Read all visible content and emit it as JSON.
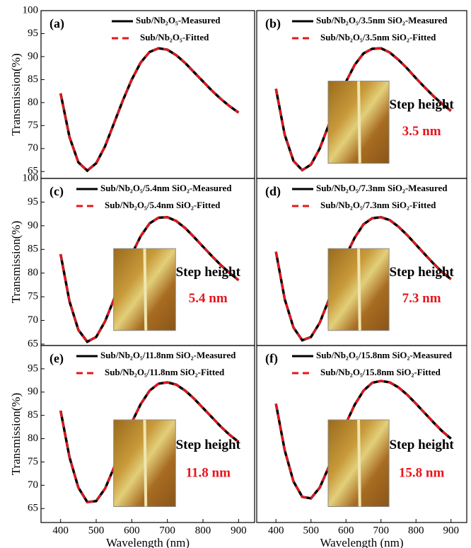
{
  "chart_data": [
    {
      "type": "line",
      "panel_label": "(a)",
      "x": [
        400,
        425,
        450,
        475,
        500,
        525,
        550,
        575,
        600,
        625,
        650,
        675,
        700,
        725,
        750,
        775,
        800,
        825,
        850,
        875,
        900
      ],
      "xlim": [
        345,
        945
      ],
      "ylim": [
        63.5,
        100
      ],
      "yticks": [
        65,
        70,
        75,
        80,
        85,
        90,
        95,
        100
      ],
      "y_label": "Transmission(%)",
      "series": [
        {
          "name": "Sub/Nb₂O₅-Measured",
          "color": "#000000",
          "values": [
            82,
            72.5,
            67,
            65.2,
            66.8,
            70.5,
            75.5,
            80.5,
            85,
            88.7,
            91,
            91.8,
            91.5,
            90.3,
            88.6,
            86.6,
            84.6,
            82.6,
            80.8,
            79.2,
            77.8
          ]
        },
        {
          "name": "Sub/Nb₂O₅-Fitted",
          "color": "#e8141b",
          "values": [
            82,
            72.5,
            67,
            65.2,
            66.8,
            70.5,
            75.5,
            80.5,
            85,
            88.7,
            91,
            91.8,
            91.5,
            90.3,
            88.6,
            86.6,
            84.6,
            82.6,
            80.8,
            79.2,
            77.8
          ]
        }
      ]
    },
    {
      "type": "line",
      "panel_label": "(b)",
      "x": [
        400,
        425,
        450,
        475,
        500,
        525,
        550,
        575,
        600,
        625,
        650,
        675,
        700,
        725,
        750,
        775,
        800,
        825,
        850,
        875,
        900
      ],
      "xlim": [
        345,
        945
      ],
      "ylim": [
        63.5,
        100
      ],
      "series": [
        {
          "name": "Sub/Nb₂O₅/3.5nm SiO₂-Measured",
          "color": "#000000",
          "values": [
            83,
            73,
            67.3,
            65.3,
            66.5,
            70,
            75,
            80,
            84.5,
            88.2,
            90.7,
            91.7,
            91.8,
            90.9,
            89.3,
            87.4,
            85.3,
            83.3,
            81.4,
            79.7,
            78.2
          ]
        },
        {
          "name": "Sub/Nb₂O₅/3.5nm SiO₂-Fitted",
          "color": "#e8141b",
          "values": [
            83,
            73,
            67.3,
            65.3,
            66.5,
            70,
            75,
            80,
            84.5,
            88.2,
            90.7,
            91.7,
            91.8,
            90.9,
            89.3,
            87.4,
            85.3,
            83.3,
            81.4,
            79.7,
            78.2
          ]
        }
      ],
      "annotations": [
        "Step height",
        "3.5 nm"
      ]
    },
    {
      "type": "line",
      "panel_label": "(c)",
      "x": [
        400,
        425,
        450,
        475,
        500,
        525,
        550,
        575,
        600,
        625,
        650,
        675,
        700,
        725,
        750,
        775,
        800,
        825,
        850,
        875,
        900
      ],
      "xlim": [
        345,
        945
      ],
      "ylim": [
        64.7,
        100
      ],
      "yticks": [
        65,
        70,
        75,
        80,
        85,
        90,
        95,
        100
      ],
      "y_label": "Transmission(%)",
      "series": [
        {
          "name": "Sub/Nb₂O₅/5.4nm SiO₂-Measured",
          "color": "#000000",
          "values": [
            84,
            74,
            68,
            65.5,
            66.5,
            69.8,
            74.5,
            79.5,
            84,
            87.8,
            90.5,
            91.7,
            91.8,
            91,
            89.5,
            87.6,
            85.6,
            83.6,
            81.7,
            80,
            78.5
          ]
        },
        {
          "name": "Sub/Nb₂O₅/5.4nm SiO₂-Fitted",
          "color": "#e8141b",
          "values": [
            84,
            74,
            68,
            65.5,
            66.5,
            69.8,
            74.5,
            79.5,
            84,
            87.8,
            90.5,
            91.7,
            91.8,
            91,
            89.5,
            87.6,
            85.6,
            83.6,
            81.7,
            80,
            78.5
          ]
        }
      ],
      "annotations": [
        "Step height",
        "5.4 nm"
      ]
    },
    {
      "type": "line",
      "panel_label": "(d)",
      "x": [
        400,
        425,
        450,
        475,
        500,
        525,
        550,
        575,
        600,
        625,
        650,
        675,
        700,
        725,
        750,
        775,
        800,
        825,
        850,
        875,
        900
      ],
      "xlim": [
        345,
        945
      ],
      "ylim": [
        64.7,
        100
      ],
      "series": [
        {
          "name": "Sub/Nb₂O₅/7.3nm SiO₂-Measured",
          "color": "#000000",
          "values": [
            84.5,
            74.5,
            68.5,
            65.8,
            66.5,
            69.5,
            74.2,
            79.2,
            83.7,
            87.5,
            90.3,
            91.6,
            91.8,
            91.2,
            89.8,
            88,
            86,
            84,
            82,
            80.2,
            78.7
          ]
        },
        {
          "name": "Sub/Nb₂O₅/7.3nm SiO₂-Fitted",
          "color": "#e8141b",
          "values": [
            84.5,
            74.5,
            68.5,
            65.8,
            66.5,
            69.5,
            74.2,
            79.2,
            83.7,
            87.5,
            90.3,
            91.6,
            91.8,
            91.2,
            89.8,
            88,
            86,
            84,
            82,
            80.2,
            78.7
          ]
        }
      ],
      "annotations": [
        "Step height",
        "7.3 nm"
      ]
    },
    {
      "type": "line",
      "panel_label": "(e)",
      "x": [
        400,
        425,
        450,
        475,
        500,
        525,
        550,
        575,
        600,
        625,
        650,
        675,
        700,
        725,
        750,
        775,
        800,
        825,
        850,
        875,
        900
      ],
      "xlim": [
        345,
        945
      ],
      "xticks": [
        400,
        500,
        600,
        700,
        800,
        900
      ],
      "x_label": "Wavelength (nm)",
      "ylim": [
        62,
        100
      ],
      "yticks": [
        65,
        70,
        75,
        80,
        85,
        90,
        95
      ],
      "y_label": "Transmission(%)",
      "series": [
        {
          "name": "Sub/Nb₂O₅/11.8nm SiO₂-Measured",
          "color": "#000000",
          "values": [
            86,
            76,
            69.5,
            66.4,
            66.6,
            69.3,
            73.8,
            78.8,
            83.5,
            87.4,
            90.3,
            91.8,
            92.1,
            91.6,
            90.3,
            88.6,
            86.6,
            84.6,
            82.6,
            80.8,
            79.3
          ]
        },
        {
          "name": "Sub/Nb₂O₅/11.8nm SiO₂-Fitted",
          "color": "#e8141b",
          "values": [
            86,
            76,
            69.5,
            66.4,
            66.6,
            69.3,
            73.8,
            78.8,
            83.5,
            87.4,
            90.3,
            91.8,
            92.1,
            91.6,
            90.3,
            88.6,
            86.6,
            84.6,
            82.6,
            80.8,
            79.3
          ]
        }
      ],
      "annotations": [
        "Step height",
        "11.8 nm"
      ]
    },
    {
      "type": "line",
      "panel_label": "(f)",
      "x": [
        400,
        425,
        450,
        475,
        500,
        525,
        550,
        575,
        600,
        625,
        650,
        675,
        700,
        725,
        750,
        775,
        800,
        825,
        850,
        875,
        900
      ],
      "xlim": [
        345,
        945
      ],
      "xticks": [
        400,
        500,
        600,
        700,
        800,
        900
      ],
      "x_label": "Wavelength (nm)",
      "ylim": [
        62,
        100
      ],
      "series": [
        {
          "name": "Sub/Nb₂O₅/15.8nm SiO₂-Measured",
          "color": "#000000",
          "values": [
            87.5,
            77.5,
            70.8,
            67.5,
            67.2,
            69.5,
            73.8,
            78.6,
            83.3,
            87.3,
            90.3,
            92,
            92.4,
            92.1,
            91,
            89.4,
            87.5,
            85.5,
            83.5,
            81.6,
            80
          ]
        },
        {
          "name": "Sub/Nb₂O₅/15.8nm SiO₂-Fitted",
          "color": "#e8141b",
          "values": [
            87.5,
            77.5,
            70.8,
            67.5,
            67.2,
            69.5,
            73.8,
            78.6,
            83.3,
            87.3,
            90.3,
            92,
            92.4,
            92.1,
            91,
            89.4,
            87.5,
            85.5,
            83.5,
            81.6,
            80
          ]
        }
      ],
      "annotations": [
        "Step height",
        "15.8 nm"
      ]
    }
  ]
}
